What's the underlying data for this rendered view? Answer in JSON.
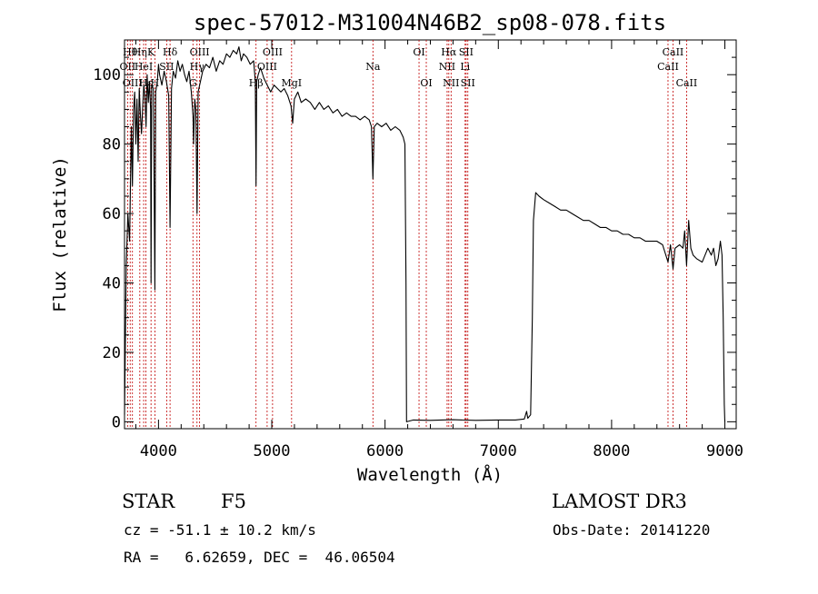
{
  "chart_data": {
    "type": "line",
    "title": "spec-57012-M31004N46B2_sp08-078.fits",
    "xlabel": "Wavelength (Å)",
    "ylabel": "Flux (relative)",
    "xlim": [
      3700,
      9100
    ],
    "ylim": [
      -2,
      110
    ],
    "xticks": [
      4000,
      5000,
      6000,
      7000,
      8000,
      9000
    ],
    "yticks": [
      0,
      20,
      40,
      60,
      80,
      100
    ],
    "series": [
      {
        "name": "spectrum",
        "points": [
          [
            3700,
            2
          ],
          [
            3715,
            45
          ],
          [
            3730,
            60
          ],
          [
            3745,
            52
          ],
          [
            3760,
            85
          ],
          [
            3770,
            68
          ],
          [
            3780,
            90
          ],
          [
            3790,
            95
          ],
          [
            3800,
            80
          ],
          [
            3810,
            93
          ],
          [
            3820,
            75
          ],
          [
            3830,
            96
          ],
          [
            3840,
            89
          ],
          [
            3850,
            83
          ],
          [
            3860,
            90
          ],
          [
            3870,
            97
          ],
          [
            3880,
            94
          ],
          [
            3890,
            85
          ],
          [
            3900,
            100
          ],
          [
            3910,
            92
          ],
          [
            3920,
            98
          ],
          [
            3930,
            90
          ],
          [
            3934,
            40
          ],
          [
            3940,
            97
          ],
          [
            3955,
            96
          ],
          [
            3968,
            38
          ],
          [
            3975,
            95
          ],
          [
            3990,
            98
          ],
          [
            4000,
            103
          ],
          [
            4010,
            100
          ],
          [
            4030,
            97
          ],
          [
            4050,
            101
          ],
          [
            4070,
            98
          ],
          [
            4090,
            94
          ],
          [
            4102,
            56
          ],
          [
            4115,
            96
          ],
          [
            4130,
            101
          ],
          [
            4150,
            99
          ],
          [
            4170,
            104
          ],
          [
            4190,
            101
          ],
          [
            4210,
            103
          ],
          [
            4230,
            100
          ],
          [
            4250,
            98
          ],
          [
            4270,
            101
          ],
          [
            4290,
            95
          ],
          [
            4305,
            88
          ],
          [
            4310,
            80
          ],
          [
            4320,
            93
          ],
          [
            4330,
            90
          ],
          [
            4340,
            60
          ],
          [
            4350,
            95
          ],
          [
            4370,
            98
          ],
          [
            4390,
            101
          ],
          [
            4420,
            103
          ],
          [
            4450,
            102
          ],
          [
            4480,
            105
          ],
          [
            4510,
            101
          ],
          [
            4540,
            104
          ],
          [
            4570,
            103
          ],
          [
            4600,
            106
          ],
          [
            4630,
            105
          ],
          [
            4660,
            107
          ],
          [
            4690,
            106
          ],
          [
            4710,
            108
          ],
          [
            4730,
            104
          ],
          [
            4750,
            106
          ],
          [
            4780,
            105
          ],
          [
            4810,
            103
          ],
          [
            4840,
            104
          ],
          [
            4855,
            98
          ],
          [
            4861,
            68
          ],
          [
            4867,
            98
          ],
          [
            4880,
            100
          ],
          [
            4900,
            102
          ],
          [
            4930,
            99
          ],
          [
            4960,
            97
          ],
          [
            4990,
            95
          ],
          [
            5020,
            97
          ],
          [
            5050,
            96
          ],
          [
            5080,
            95
          ],
          [
            5110,
            96
          ],
          [
            5140,
            94
          ],
          [
            5170,
            91
          ],
          [
            5184,
            86
          ],
          [
            5200,
            93
          ],
          [
            5230,
            95
          ],
          [
            5260,
            92
          ],
          [
            5300,
            93
          ],
          [
            5340,
            92
          ],
          [
            5380,
            90
          ],
          [
            5420,
            92
          ],
          [
            5460,
            90
          ],
          [
            5500,
            91
          ],
          [
            5540,
            89
          ],
          [
            5580,
            90
          ],
          [
            5620,
            88
          ],
          [
            5660,
            89
          ],
          [
            5700,
            88
          ],
          [
            5740,
            88
          ],
          [
            5780,
            87
          ],
          [
            5820,
            88
          ],
          [
            5860,
            87
          ],
          [
            5880,
            85
          ],
          [
            5893,
            70
          ],
          [
            5905,
            85
          ],
          [
            5930,
            86
          ],
          [
            5970,
            85
          ],
          [
            6010,
            86
          ],
          [
            6050,
            84
          ],
          [
            6090,
            85
          ],
          [
            6130,
            84
          ],
          [
            6160,
            82
          ],
          [
            6175,
            80
          ],
          [
            6185,
            40
          ],
          [
            6190,
            0
          ],
          [
            6250,
            0.5
          ],
          [
            6400,
            0.4
          ],
          [
            6600,
            0.6
          ],
          [
            6800,
            0.4
          ],
          [
            7000,
            0.5
          ],
          [
            7150,
            0.5
          ],
          [
            7230,
            0.8
          ],
          [
            7250,
            3
          ],
          [
            7260,
            1
          ],
          [
            7285,
            2
          ],
          [
            7300,
            30
          ],
          [
            7310,
            58
          ],
          [
            7330,
            66
          ],
          [
            7360,
            65
          ],
          [
            7400,
            64
          ],
          [
            7450,
            63
          ],
          [
            7500,
            62
          ],
          [
            7550,
            61
          ],
          [
            7600,
            61
          ],
          [
            7650,
            60
          ],
          [
            7700,
            59
          ],
          [
            7750,
            58
          ],
          [
            7800,
            58
          ],
          [
            7850,
            57
          ],
          [
            7900,
            56
          ],
          [
            7950,
            56
          ],
          [
            8000,
            55
          ],
          [
            8050,
            55
          ],
          [
            8100,
            54
          ],
          [
            8150,
            54
          ],
          [
            8200,
            53
          ],
          [
            8250,
            53
          ],
          [
            8300,
            52
          ],
          [
            8350,
            52
          ],
          [
            8400,
            52
          ],
          [
            8450,
            51
          ],
          [
            8498,
            46
          ],
          [
            8520,
            51
          ],
          [
            8542,
            44
          ],
          [
            8560,
            50
          ],
          [
            8600,
            51
          ],
          [
            8630,
            50
          ],
          [
            8645,
            55
          ],
          [
            8662,
            45
          ],
          [
            8680,
            58
          ],
          [
            8700,
            50
          ],
          [
            8720,
            48
          ],
          [
            8750,
            47
          ],
          [
            8800,
            46
          ],
          [
            8850,
            50
          ],
          [
            8880,
            48
          ],
          [
            8900,
            50
          ],
          [
            8920,
            45
          ],
          [
            8940,
            47
          ],
          [
            8960,
            52
          ],
          [
            8975,
            48
          ],
          [
            8985,
            30
          ],
          [
            8995,
            5
          ],
          [
            9000,
            0
          ]
        ]
      }
    ],
    "lines": [
      {
        "wl": 3727,
        "label": "OII",
        "row": 2
      },
      {
        "wl": 3750,
        "label": "Hθ",
        "row": 1
      },
      {
        "wl": 3770,
        "label": "OIII",
        "row": 3
      },
      {
        "wl": 3835,
        "label": "Hη",
        "row": 1
      },
      {
        "wl": 3869,
        "label": "HeI",
        "row": 2
      },
      {
        "wl": 3889,
        "label": "Hε",
        "row": 3
      },
      {
        "wl": 3934,
        "label": "K",
        "row": 1
      },
      {
        "wl": 3968,
        "label": "H",
        "row": 3
      },
      {
        "wl": 4072,
        "label": "SII",
        "row": 2
      },
      {
        "wl": 4102,
        "label": "Hδ",
        "row": 1
      },
      {
        "wl": 4304,
        "label": "G",
        "row": 3
      },
      {
        "wl": 4340,
        "label": "Hγ",
        "row": 2
      },
      {
        "wl": 4363,
        "label": "OIII",
        "row": 1
      },
      {
        "wl": 4861,
        "label": "Hβ",
        "row": 3
      },
      {
        "wl": 4959,
        "label": "OIII",
        "row": 2
      },
      {
        "wl": 5007,
        "label": "OIII",
        "row": 1
      },
      {
        "wl": 5175,
        "label": "MgI",
        "row": 3
      },
      {
        "wl": 5893,
        "label": "Na",
        "row": 2
      },
      {
        "wl": 6300,
        "label": "OI",
        "row": 1
      },
      {
        "wl": 6364,
        "label": "OI",
        "row": 3
      },
      {
        "wl": 6548,
        "label": "NII",
        "row": 2
      },
      {
        "wl": 6563,
        "label": "Hα",
        "row": 1
      },
      {
        "wl": 6583,
        "label": "NII",
        "row": 3
      },
      {
        "wl": 6707,
        "label": "Li",
        "row": 2
      },
      {
        "wl": 6716,
        "label": "SII",
        "row": 1
      },
      {
        "wl": 6731,
        "label": "SII",
        "row": 3
      },
      {
        "wl": 8498,
        "label": "CaII",
        "row": 2
      },
      {
        "wl": 8542,
        "label": "CaII",
        "row": 1
      },
      {
        "wl": 8662,
        "label": "CaII",
        "row": 3
      }
    ]
  },
  "info": {
    "class": "STAR",
    "subclass": "F5",
    "survey": "LAMOST DR3",
    "cz": "cz = -51.1 ± 10.2 km/s",
    "obs_date": "Obs-Date: 20141220",
    "coords": "RA =   6.62659, DEC =  46.06504"
  },
  "colors": {
    "spectrum": "#000000",
    "line_marker": "#c00000",
    "axis": "#000000"
  }
}
